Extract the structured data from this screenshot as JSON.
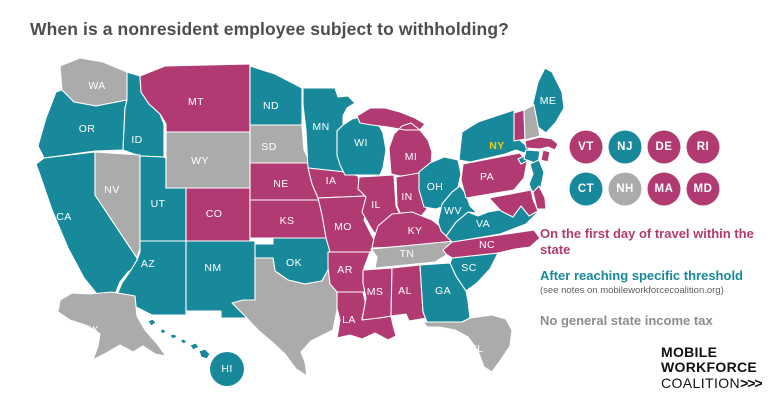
{
  "title": "When is a nonresident employee subject to withholding?",
  "categories": {
    "first_day": {
      "label": "On the first day of travel within the state",
      "color": "#B23A72",
      "text_color": "#B5396F"
    },
    "threshold": {
      "label": "After reaching specific threshold",
      "note": "(see notes on mobileworkforcecoalition.org)",
      "color": "#17899B",
      "text_color": "#17899B"
    },
    "no_tax": {
      "label": "No general state income tax",
      "color": "#ABABAB",
      "text_color": "#8D8D8D"
    }
  },
  "map": {
    "highlight_state": "NY",
    "highlight_color": "#EFCB0C",
    "label_color": "#FFFFFF",
    "states": [
      {
        "id": "WA",
        "label": "WA",
        "category": "no_tax"
      },
      {
        "id": "OR",
        "label": "OR",
        "category": "threshold"
      },
      {
        "id": "CA",
        "label": "CA",
        "category": "threshold"
      },
      {
        "id": "ID",
        "label": "ID",
        "category": "threshold"
      },
      {
        "id": "NV",
        "label": "NV",
        "category": "no_tax"
      },
      {
        "id": "UT",
        "label": "UT",
        "category": "threshold"
      },
      {
        "id": "AZ",
        "label": "AZ",
        "category": "threshold"
      },
      {
        "id": "MT",
        "label": "MT",
        "category": "first_day"
      },
      {
        "id": "WY",
        "label": "WY",
        "category": "no_tax"
      },
      {
        "id": "CO",
        "label": "CO",
        "category": "first_day"
      },
      {
        "id": "NM",
        "label": "NM",
        "category": "threshold"
      },
      {
        "id": "ND",
        "label": "ND",
        "category": "threshold"
      },
      {
        "id": "SD",
        "label": "SD",
        "category": "no_tax"
      },
      {
        "id": "NE",
        "label": "NE",
        "category": "first_day"
      },
      {
        "id": "KS",
        "label": "KS",
        "category": "first_day"
      },
      {
        "id": "OK",
        "label": "OK",
        "category": "threshold"
      },
      {
        "id": "TX",
        "label": "",
        "category": "no_tax"
      },
      {
        "id": "MN",
        "label": "MN",
        "category": "threshold"
      },
      {
        "id": "IA",
        "label": "IA",
        "category": "first_day"
      },
      {
        "id": "MO",
        "label": "MO",
        "category": "first_day"
      },
      {
        "id": "AR",
        "label": "AR",
        "category": "first_day"
      },
      {
        "id": "LA",
        "label": "LA",
        "category": "first_day"
      },
      {
        "id": "WI",
        "label": "WI",
        "category": "threshold"
      },
      {
        "id": "IL",
        "label": "IL",
        "category": "first_day"
      },
      {
        "id": "MI",
        "label": "MI",
        "category": "first_day"
      },
      {
        "id": "IN",
        "label": "IN",
        "category": "first_day"
      },
      {
        "id": "OH",
        "label": "OH",
        "category": "threshold"
      },
      {
        "id": "KY",
        "label": "KY",
        "category": "first_day"
      },
      {
        "id": "TN",
        "label": "TN",
        "category": "no_tax"
      },
      {
        "id": "MS",
        "label": "MS",
        "category": "first_day"
      },
      {
        "id": "AL",
        "label": "AL",
        "category": "first_day"
      },
      {
        "id": "GA",
        "label": "GA",
        "category": "threshold"
      },
      {
        "id": "FL",
        "label": "FL",
        "category": "no_tax"
      },
      {
        "id": "SC",
        "label": "SC",
        "category": "threshold"
      },
      {
        "id": "NC",
        "label": "NC",
        "category": "first_day"
      },
      {
        "id": "VA",
        "label": "VA",
        "category": "threshold"
      },
      {
        "id": "WV",
        "label": "WV",
        "category": "threshold"
      },
      {
        "id": "PA",
        "label": "PA",
        "category": "first_day"
      },
      {
        "id": "NY",
        "label": "NY",
        "category": "threshold"
      },
      {
        "id": "ME",
        "label": "ME",
        "category": "threshold"
      },
      {
        "id": "VT",
        "label": "",
        "category": "first_day"
      },
      {
        "id": "NH",
        "label": "",
        "category": "no_tax"
      },
      {
        "id": "MA",
        "label": "",
        "category": "first_day"
      },
      {
        "id": "CT",
        "label": "",
        "category": "threshold"
      },
      {
        "id": "RI",
        "label": "",
        "category": "first_day"
      },
      {
        "id": "NJ",
        "label": "",
        "category": "threshold"
      },
      {
        "id": "DE",
        "label": "",
        "category": "first_day"
      },
      {
        "id": "MD",
        "label": "",
        "category": "first_day"
      },
      {
        "id": "AK",
        "label": "AK",
        "category": "no_tax"
      },
      {
        "id": "HI",
        "label": "HI",
        "category": "threshold"
      }
    ]
  },
  "state_circles": {
    "rows": [
      [
        {
          "id": "VT",
          "category": "first_day"
        },
        {
          "id": "NJ",
          "category": "threshold"
        },
        {
          "id": "DE",
          "category": "first_day"
        },
        {
          "id": "RI",
          "category": "first_day"
        }
      ],
      [
        {
          "id": "CT",
          "category": "threshold"
        },
        {
          "id": "NH",
          "category": "no_tax"
        },
        {
          "id": "MA",
          "category": "first_day"
        },
        {
          "id": "MD",
          "category": "first_day"
        }
      ]
    ]
  },
  "logo": {
    "line1": "MOBILE",
    "line2": "WORKFORCE",
    "line3": "COALITION",
    "arrows": ">>>"
  }
}
